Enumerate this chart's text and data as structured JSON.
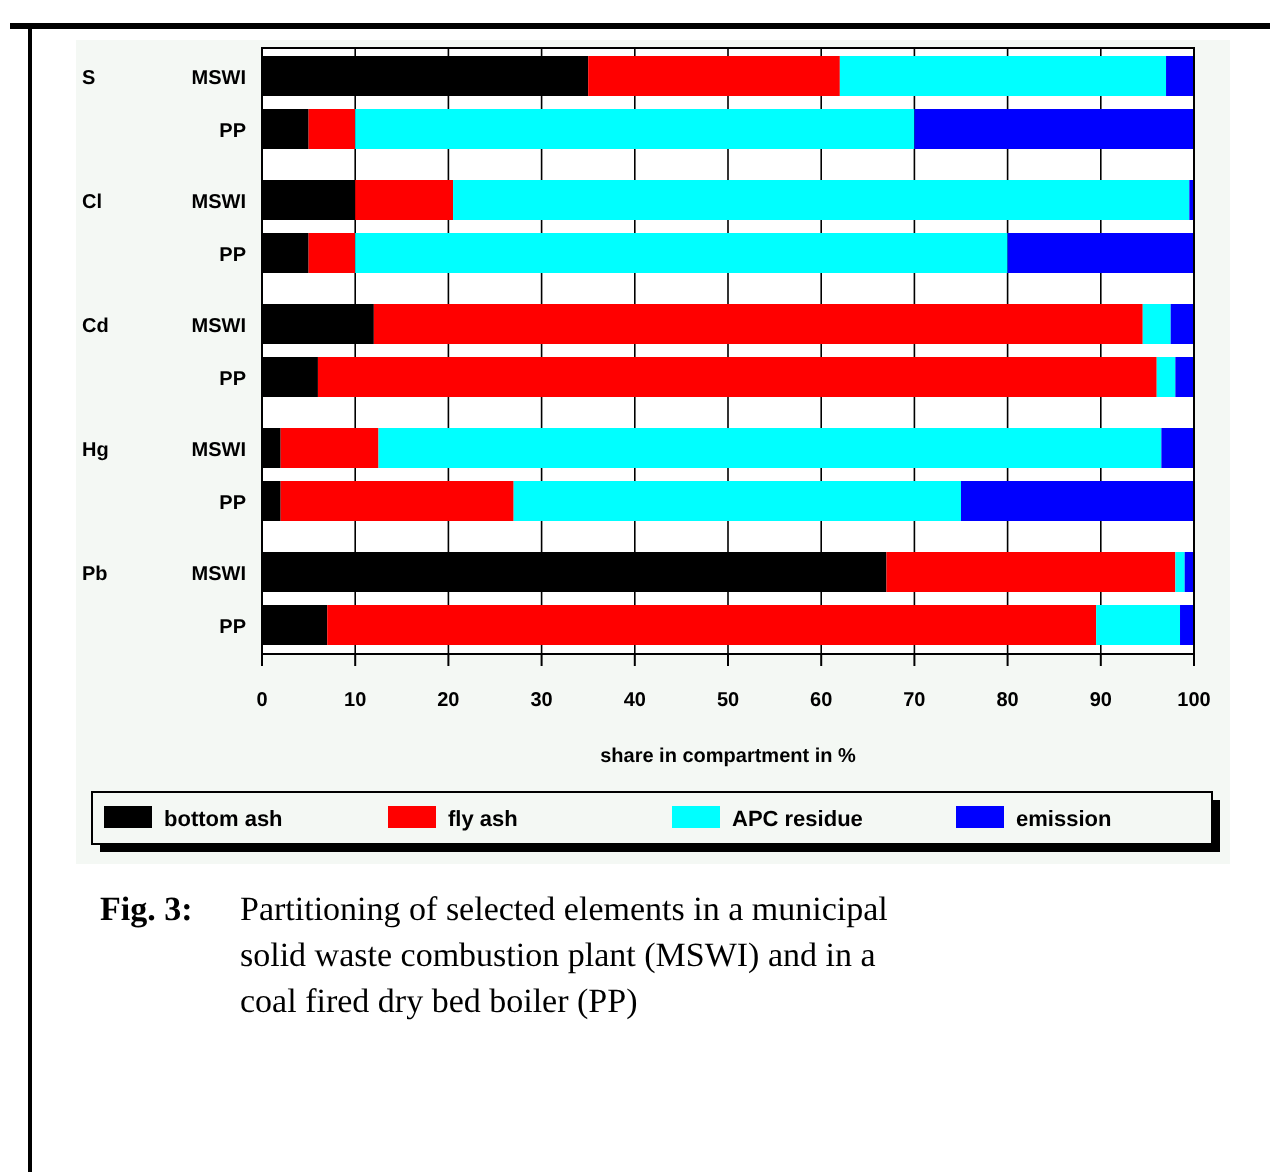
{
  "chart_data": {
    "type": "bar",
    "orientation": "horizontal",
    "stacked": true,
    "categories": [
      "MSWI",
      "PP",
      "MSWI",
      "PP",
      "MSWI",
      "PP",
      "MSWI",
      "PP",
      "MSWI",
      "PP"
    ],
    "series": [
      {
        "name": "bottom ash",
        "color": "#000000",
        "values": [
          35,
          5,
          10,
          5,
          12,
          6,
          2,
          2,
          67,
          7
        ]
      },
      {
        "name": "fly ash",
        "color": "#ff0000",
        "values": [
          27,
          5,
          10.5,
          5,
          82.5,
          90,
          10.5,
          25,
          31,
          82.5
        ]
      },
      {
        "name": "APC residue",
        "color": "#00ffff",
        "values": [
          35,
          60,
          79,
          70,
          3,
          2,
          84,
          48,
          1,
          9
        ]
      },
      {
        "name": "emission",
        "color": "#0000ff",
        "values": [
          3,
          30,
          0.5,
          20,
          2.5,
          2,
          3.5,
          25,
          1,
          1.5
        ]
      }
    ],
    "xlim": [
      0,
      100
    ],
    "xticks": [
      0,
      10,
      20,
      30,
      40,
      50,
      60,
      70,
      80,
      90,
      100
    ],
    "xlabel": "share in compartment in %",
    "grid": "x",
    "legend": "bottom",
    "annotations": [
      "S",
      "Cl",
      "Cd",
      "Hg",
      "Pb",
      "Fig. 3: Partitioning of selected elements in a municipal solid waste combustion plant (MSWI) and in a coal fired dry bed boiler (PP)"
    ]
  }
}
